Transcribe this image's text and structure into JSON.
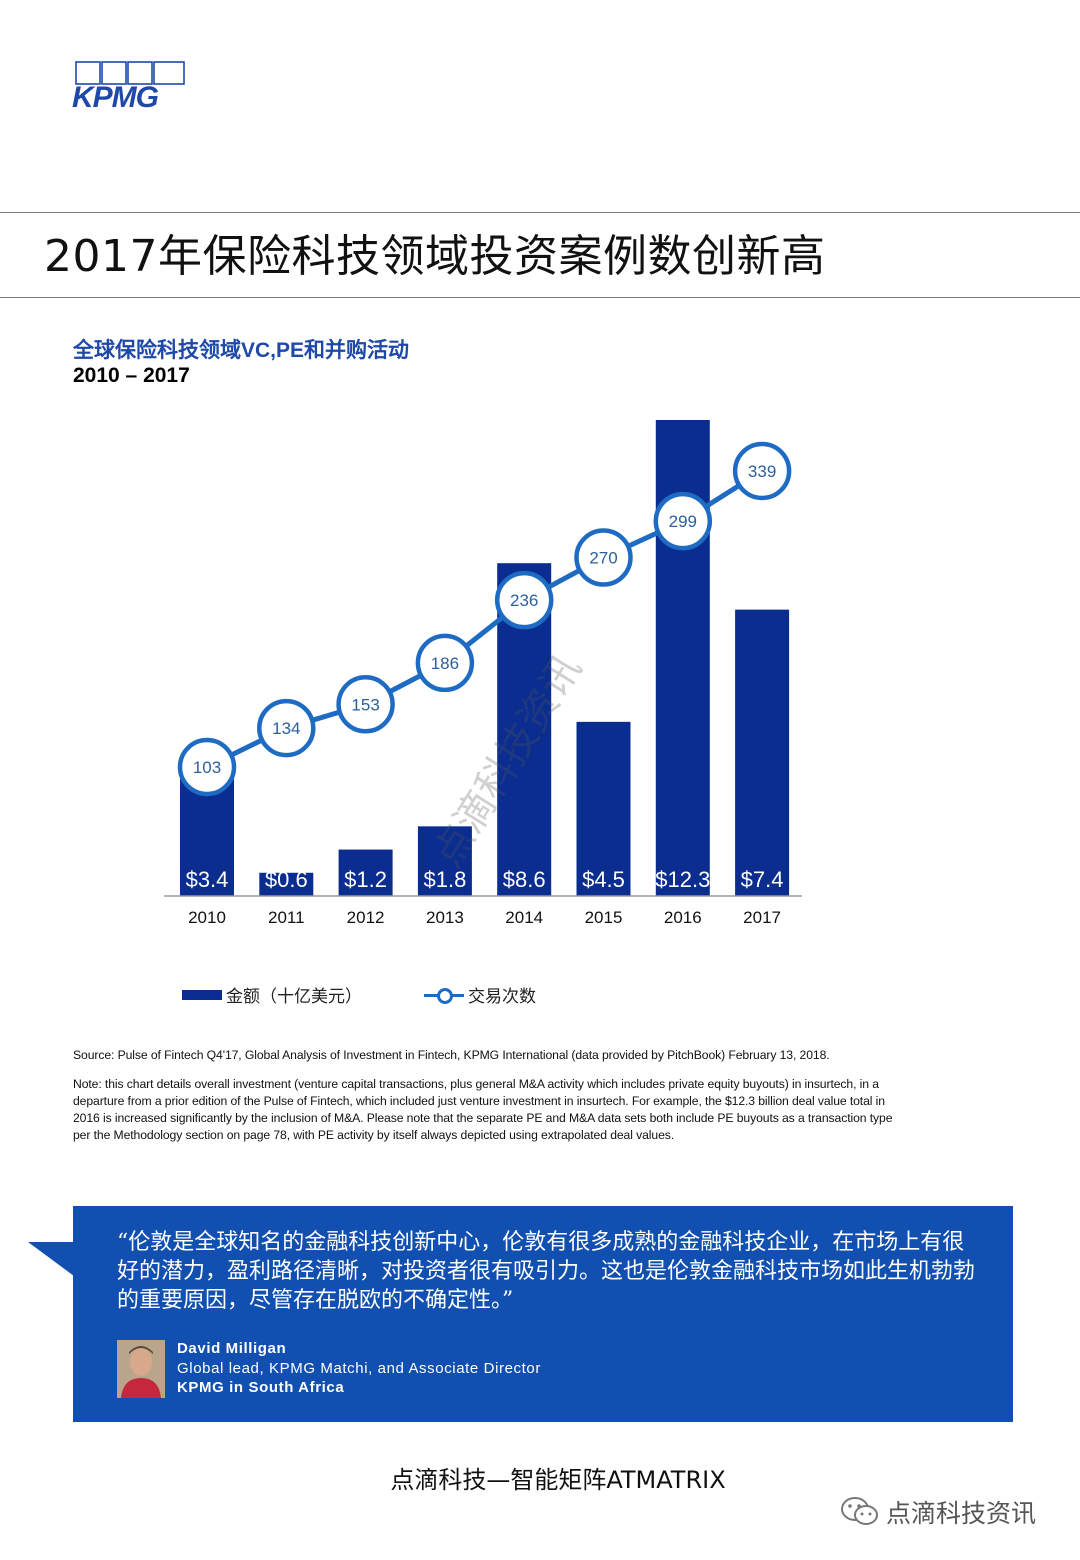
{
  "brand": {
    "logo_text": "KPMG"
  },
  "page": {
    "title": "2017年保险科技领域投资案例数创新高"
  },
  "chart": {
    "title": "全球保险科技领域VC,PE和并购活动",
    "subtitle": "2010 – 2017",
    "legend": {
      "bars": "金额（十亿美元）",
      "line": "交易次数"
    },
    "colors": {
      "bar": "#0a2d8f",
      "line": "#1e6bc4"
    }
  },
  "chart_data": {
    "type": "bar",
    "title": "全球保险科技领域VC,PE和并购活动",
    "subtitle": "2010 – 2017",
    "categories": [
      "2010",
      "2011",
      "2012",
      "2013",
      "2014",
      "2015",
      "2016",
      "2017"
    ],
    "series": [
      {
        "name": "金额（十亿美元）",
        "type": "bar",
        "values": [
          3.4,
          0.6,
          1.2,
          1.8,
          8.6,
          4.5,
          12.3,
          7.4
        ],
        "labels": [
          "$3.4",
          "$0.6",
          "$1.2",
          "$1.8",
          "$8.6",
          "$4.5",
          "$12.3",
          "$7.4"
        ]
      },
      {
        "name": "交易次数",
        "type": "line",
        "values": [
          103,
          134,
          153,
          186,
          236,
          270,
          299,
          339
        ]
      }
    ],
    "ylim": [
      0,
      12.3
    ],
    "grid": false,
    "legend_position": "bottom-left"
  },
  "notes": {
    "source": "Source: Pulse of Fintech Q4'17, Global Analysis of Investment in Fintech, KPMG International (data provided by PitchBook) February 13, 2018.",
    "note_lines": [
      "Note: this chart details overall investment (venture capital transactions, plus general M&A activity which includes private equity buyouts) in insurtech, in a",
      "departure from a prior edition of the Pulse of Fintech, which included just venture investment in insurtech. For example, the $12.3 billion deal value total in",
      "2016 is increased significantly by the inclusion of M&A. Please note that the separate PE and M&A data sets both include PE buyouts as a transaction type",
      "per the Methodology section on page 78, with PE activity by itself always depicted using extrapolated deal values."
    ]
  },
  "quote": {
    "text": "“伦敦是全球知名的金融科技创新中心，伦敦有很多成熟的金融科技企业，在市场上有很好的潜力，盈利路径清晰，对投资者很有吸引力。这也是伦敦金融科技市场如此生机勃勃的重要原因，尽管存在脱欧的不确定性。”",
    "person_name": "David Milligan",
    "person_role": "Global lead, KPMG Matchi, and Associate Director",
    "person_org": "KPMG in South Africa",
    "box_color": "#1150b0"
  },
  "footer": {
    "brand_line": "点滴科技—智能矩阵ATMATRIX",
    "wechat_account": "点滴科技资讯",
    "watermark": "点滴科技资讯"
  }
}
